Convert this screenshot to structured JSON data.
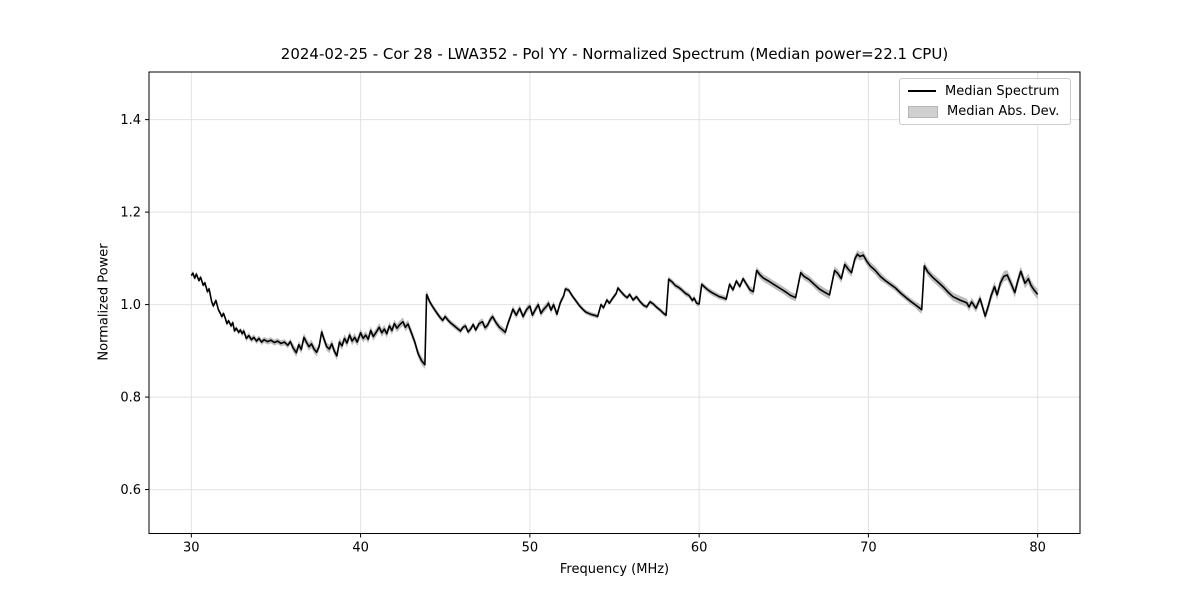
{
  "figure": {
    "kind": "matplotlib-style line chart",
    "background": "#ffffff",
    "colors": {
      "line": "#000000",
      "band": "#bdbdbd",
      "grid": "#e2e2e2",
      "spine": "#000000",
      "tick_label": "#000000"
    }
  },
  "chart_data": {
    "type": "line",
    "title": "2024-02-25 - Cor 28 - LWA352 - Pol YY - Normalized Spectrum (Median power=22.1 CPU)",
    "xlabel": "Frequency (MHz)",
    "ylabel": "Normalized Power",
    "xlim": [
      27.5,
      82.5
    ],
    "ylim": [
      0.505,
      1.503
    ],
    "xticks": [
      30,
      40,
      50,
      60,
      70,
      80
    ],
    "yticks": [
      0.6,
      0.8,
      1.0,
      1.2,
      1.4
    ],
    "grid": true,
    "legend": {
      "position": "upper right",
      "items": [
        {
          "label": "Median Spectrum",
          "handle": "line",
          "color": "#000000"
        },
        {
          "label": "Median Abs. Dev.",
          "handle": "patch",
          "color": "#d0d0d0"
        }
      ]
    },
    "series": [
      {
        "name": "Median Spectrum",
        "type": "line",
        "color": "#000000",
        "points": [
          [
            30.0,
            1.063
          ],
          [
            30.1,
            1.068
          ],
          [
            30.2,
            1.057
          ],
          [
            30.3,
            1.066
          ],
          [
            30.45,
            1.052
          ],
          [
            30.55,
            1.059
          ],
          [
            30.7,
            1.042
          ],
          [
            30.8,
            1.047
          ],
          [
            30.95,
            1.028
          ],
          [
            31.05,
            1.034
          ],
          [
            31.2,
            1.007
          ],
          [
            31.3,
            0.997
          ],
          [
            31.45,
            1.009
          ],
          [
            31.6,
            0.989
          ],
          [
            31.7,
            0.982
          ],
          [
            31.8,
            0.974
          ],
          [
            31.9,
            0.981
          ],
          [
            32.0,
            0.971
          ],
          [
            32.1,
            0.959
          ],
          [
            32.2,
            0.965
          ],
          [
            32.35,
            0.954
          ],
          [
            32.45,
            0.961
          ],
          [
            32.55,
            0.943
          ],
          [
            32.65,
            0.949
          ],
          [
            32.8,
            0.94
          ],
          [
            32.9,
            0.945
          ],
          [
            33.0,
            0.937
          ],
          [
            33.1,
            0.943
          ],
          [
            33.25,
            0.927
          ],
          [
            33.4,
            0.933
          ],
          [
            33.55,
            0.924
          ],
          [
            33.7,
            0.929
          ],
          [
            33.85,
            0.921
          ],
          [
            34.0,
            0.927
          ],
          [
            34.15,
            0.919
          ],
          [
            34.3,
            0.924
          ],
          [
            34.5,
            0.92
          ],
          [
            34.7,
            0.923
          ],
          [
            34.9,
            0.918
          ],
          [
            35.1,
            0.921
          ],
          [
            35.3,
            0.916
          ],
          [
            35.5,
            0.919
          ],
          [
            35.7,
            0.912
          ],
          [
            35.85,
            0.92
          ],
          [
            36.0,
            0.907
          ],
          [
            36.2,
            0.896
          ],
          [
            36.35,
            0.913
          ],
          [
            36.5,
            0.903
          ],
          [
            36.65,
            0.929
          ],
          [
            36.8,
            0.919
          ],
          [
            36.95,
            0.909
          ],
          [
            37.1,
            0.915
          ],
          [
            37.25,
            0.904
          ],
          [
            37.4,
            0.897
          ],
          [
            37.55,
            0.909
          ],
          [
            37.7,
            0.941
          ],
          [
            37.85,
            0.924
          ],
          [
            38.0,
            0.909
          ],
          [
            38.15,
            0.904
          ],
          [
            38.3,
            0.915
          ],
          [
            38.45,
            0.899
          ],
          [
            38.6,
            0.889
          ],
          [
            38.75,
            0.919
          ],
          [
            38.9,
            0.911
          ],
          [
            39.05,
            0.927
          ],
          [
            39.2,
            0.917
          ],
          [
            39.35,
            0.934
          ],
          [
            39.5,
            0.921
          ],
          [
            39.65,
            0.929
          ],
          [
            39.8,
            0.919
          ],
          [
            40.0,
            0.939
          ],
          [
            40.15,
            0.927
          ],
          [
            40.3,
            0.934
          ],
          [
            40.45,
            0.925
          ],
          [
            40.6,
            0.944
          ],
          [
            40.75,
            0.931
          ],
          [
            40.9,
            0.939
          ],
          [
            41.1,
            0.951
          ],
          [
            41.25,
            0.939
          ],
          [
            41.4,
            0.947
          ],
          [
            41.55,
            0.937
          ],
          [
            41.7,
            0.954
          ],
          [
            41.85,
            0.944
          ],
          [
            42.0,
            0.959
          ],
          [
            42.15,
            0.949
          ],
          [
            42.3,
            0.956
          ],
          [
            42.5,
            0.963
          ],
          [
            42.65,
            0.951
          ],
          [
            42.8,
            0.958
          ],
          [
            43.0,
            0.939
          ],
          [
            43.2,
            0.919
          ],
          [
            43.4,
            0.894
          ],
          [
            43.6,
            0.879
          ],
          [
            43.8,
            0.87
          ],
          [
            43.9,
            1.022
          ],
          [
            44.1,
            1.005
          ],
          [
            44.3,
            0.993
          ],
          [
            44.5,
            0.982
          ],
          [
            44.7,
            0.972
          ],
          [
            44.85,
            0.966
          ],
          [
            45.0,
            0.974
          ],
          [
            45.15,
            0.967
          ],
          [
            45.3,
            0.961
          ],
          [
            45.5,
            0.955
          ],
          [
            45.7,
            0.949
          ],
          [
            45.9,
            0.943
          ],
          [
            46.05,
            0.951
          ],
          [
            46.2,
            0.954
          ],
          [
            46.35,
            0.941
          ],
          [
            46.5,
            0.947
          ],
          [
            46.65,
            0.957
          ],
          [
            46.8,
            0.945
          ],
          [
            47.0,
            0.959
          ],
          [
            47.2,
            0.963
          ],
          [
            47.35,
            0.95
          ],
          [
            47.5,
            0.955
          ],
          [
            47.65,
            0.967
          ],
          [
            47.8,
            0.974
          ],
          [
            48.0,
            0.961
          ],
          [
            48.2,
            0.951
          ],
          [
            48.4,
            0.945
          ],
          [
            48.55,
            0.94
          ],
          [
            48.7,
            0.959
          ],
          [
            48.85,
            0.974
          ],
          [
            49.0,
            0.99
          ],
          [
            49.2,
            0.977
          ],
          [
            49.4,
            0.992
          ],
          [
            49.6,
            0.974
          ],
          [
            49.8,
            0.989
          ],
          [
            50.0,
            0.997
          ],
          [
            50.15,
            0.977
          ],
          [
            50.35,
            0.991
          ],
          [
            50.5,
            1.0
          ],
          [
            50.65,
            0.981
          ],
          [
            50.8,
            0.989
          ],
          [
            51.0,
            0.997
          ],
          [
            51.1,
            1.003
          ],
          [
            51.25,
            0.988
          ],
          [
            51.4,
            1.0
          ],
          [
            51.6,
            0.979
          ],
          [
            51.8,
            1.004
          ],
          [
            52.0,
            1.019
          ],
          [
            52.1,
            1.034
          ],
          [
            52.3,
            1.031
          ],
          [
            52.5,
            1.019
          ],
          [
            52.7,
            1.009
          ],
          [
            52.9,
            0.999
          ],
          [
            53.1,
            0.991
          ],
          [
            53.3,
            0.984
          ],
          [
            53.6,
            0.979
          ],
          [
            53.9,
            0.976
          ],
          [
            54.0,
            0.974
          ],
          [
            54.2,
            1.0
          ],
          [
            54.35,
            0.993
          ],
          [
            54.55,
            1.01
          ],
          [
            54.7,
            1.003
          ],
          [
            54.9,
            1.014
          ],
          [
            55.1,
            1.024
          ],
          [
            55.2,
            1.036
          ],
          [
            55.4,
            1.027
          ],
          [
            55.6,
            1.019
          ],
          [
            55.75,
            1.015
          ],
          [
            55.9,
            1.022
          ],
          [
            56.1,
            1.01
          ],
          [
            56.3,
            1.017
          ],
          [
            56.5,
            1.007
          ],
          [
            56.7,
            0.999
          ],
          [
            56.9,
            0.995
          ],
          [
            57.1,
            1.006
          ],
          [
            57.3,
            1.001
          ],
          [
            57.5,
            0.994
          ],
          [
            57.7,
            0.988
          ],
          [
            57.9,
            0.981
          ],
          [
            58.05,
            0.977
          ],
          [
            58.2,
            1.055
          ],
          [
            58.4,
            1.049
          ],
          [
            58.6,
            1.041
          ],
          [
            58.8,
            1.037
          ],
          [
            59.0,
            1.031
          ],
          [
            59.2,
            1.024
          ],
          [
            59.4,
            1.02
          ],
          [
            59.6,
            1.009
          ],
          [
            59.7,
            1.014
          ],
          [
            59.85,
            1.003
          ],
          [
            60.0,
            1.001
          ],
          [
            60.15,
            1.044
          ],
          [
            60.35,
            1.037
          ],
          [
            60.55,
            1.031
          ],
          [
            60.75,
            1.026
          ],
          [
            61.0,
            1.021
          ],
          [
            61.2,
            1.017
          ],
          [
            61.4,
            1.015
          ],
          [
            61.6,
            1.012
          ],
          [
            61.8,
            1.044
          ],
          [
            62.0,
            1.032
          ],
          [
            62.2,
            1.051
          ],
          [
            62.4,
            1.039
          ],
          [
            62.6,
            1.056
          ],
          [
            62.8,
            1.044
          ],
          [
            63.0,
            1.032
          ],
          [
            63.2,
            1.028
          ],
          [
            63.4,
            1.074
          ],
          [
            63.6,
            1.064
          ],
          [
            63.8,
            1.057
          ],
          [
            64.1,
            1.051
          ],
          [
            64.4,
            1.044
          ],
          [
            64.7,
            1.037
          ],
          [
            65.0,
            1.03
          ],
          [
            65.2,
            1.025
          ],
          [
            65.4,
            1.02
          ],
          [
            65.7,
            1.015
          ],
          [
            66.0,
            1.069
          ],
          [
            66.2,
            1.061
          ],
          [
            66.5,
            1.054
          ],
          [
            66.8,
            1.044
          ],
          [
            67.1,
            1.034
          ],
          [
            67.4,
            1.027
          ],
          [
            67.7,
            1.021
          ],
          [
            68.0,
            1.074
          ],
          [
            68.2,
            1.067
          ],
          [
            68.4,
            1.056
          ],
          [
            68.6,
            1.087
          ],
          [
            68.8,
            1.077
          ],
          [
            69.0,
            1.069
          ],
          [
            69.2,
            1.099
          ],
          [
            69.35,
            1.109
          ],
          [
            69.5,
            1.104
          ],
          [
            69.7,
            1.107
          ],
          [
            69.9,
            1.094
          ],
          [
            70.1,
            1.084
          ],
          [
            70.4,
            1.074
          ],
          [
            70.7,
            1.061
          ],
          [
            71.0,
            1.052
          ],
          [
            71.3,
            1.044
          ],
          [
            71.6,
            1.036
          ],
          [
            71.9,
            1.025
          ],
          [
            72.2,
            1.016
          ],
          [
            72.5,
            1.007
          ],
          [
            72.8,
            0.999
          ],
          [
            73.0,
            0.993
          ],
          [
            73.15,
            0.989
          ],
          [
            73.3,
            1.084
          ],
          [
            73.5,
            1.071
          ],
          [
            73.8,
            1.059
          ],
          [
            74.1,
            1.049
          ],
          [
            74.4,
            1.039
          ],
          [
            74.7,
            1.027
          ],
          [
            75.0,
            1.017
          ],
          [
            75.4,
            1.01
          ],
          [
            75.8,
            1.004
          ],
          [
            75.95,
            0.995
          ],
          [
            76.1,
            1.006
          ],
          [
            76.35,
            0.992
          ],
          [
            76.6,
            1.013
          ],
          [
            76.9,
            0.975
          ],
          [
            77.1,
            0.999
          ],
          [
            77.25,
            1.019
          ],
          [
            77.45,
            1.039
          ],
          [
            77.6,
            1.021
          ],
          [
            77.8,
            1.047
          ],
          [
            78.0,
            1.061
          ],
          [
            78.2,
            1.064
          ],
          [
            78.45,
            1.044
          ],
          [
            78.65,
            1.026
          ],
          [
            78.85,
            1.054
          ],
          [
            79.0,
            1.072
          ],
          [
            79.25,
            1.046
          ],
          [
            79.45,
            1.056
          ],
          [
            79.6,
            1.042
          ],
          [
            79.8,
            1.031
          ],
          [
            80.0,
            1.022
          ]
        ]
      },
      {
        "name": "Median Abs. Dev.",
        "type": "band_around_line",
        "around": "Median Spectrum",
        "color": "#bdbdbd",
        "halfwidth_segments": [
          [
            30.0,
            33.0,
            0.005
          ],
          [
            33.0,
            36.0,
            0.0065
          ],
          [
            36.0,
            44.0,
            0.009
          ],
          [
            44.0,
            47.0,
            0.006
          ],
          [
            47.0,
            52.0,
            0.0075
          ],
          [
            52.0,
            58.0,
            0.005
          ],
          [
            58.0,
            63.0,
            0.006
          ],
          [
            63.0,
            67.0,
            0.008
          ],
          [
            67.0,
            71.0,
            0.009
          ],
          [
            71.0,
            73.0,
            0.007
          ],
          [
            73.0,
            77.0,
            0.009
          ],
          [
            77.0,
            80.1,
            0.011
          ]
        ]
      }
    ]
  }
}
